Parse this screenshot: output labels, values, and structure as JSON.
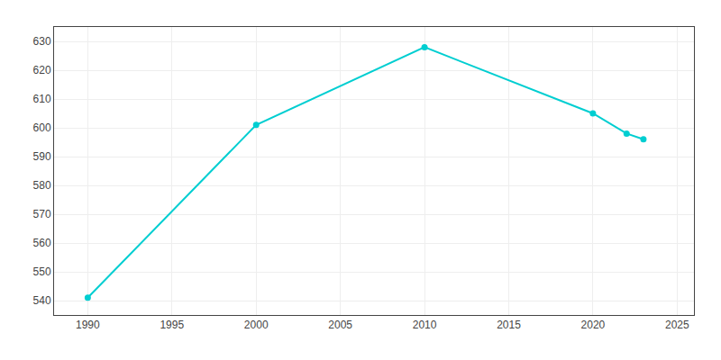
{
  "chart_data": {
    "type": "line",
    "x": [
      1990,
      2000,
      2010,
      2020,
      2022,
      2023
    ],
    "values": [
      541,
      601,
      628,
      605,
      598,
      596
    ],
    "color": "#00CED1",
    "marker": "circle",
    "line_style": "solid",
    "xlim": [
      1988,
      2026
    ],
    "xticks": [
      1990,
      1995,
      2000,
      2005,
      2010,
      2015,
      2020,
      2025
    ],
    "ylim": [
      535,
      635
    ],
    "yticks": [
      540,
      550,
      560,
      570,
      580,
      590,
      600,
      610,
      620,
      630
    ],
    "grid": true
  }
}
